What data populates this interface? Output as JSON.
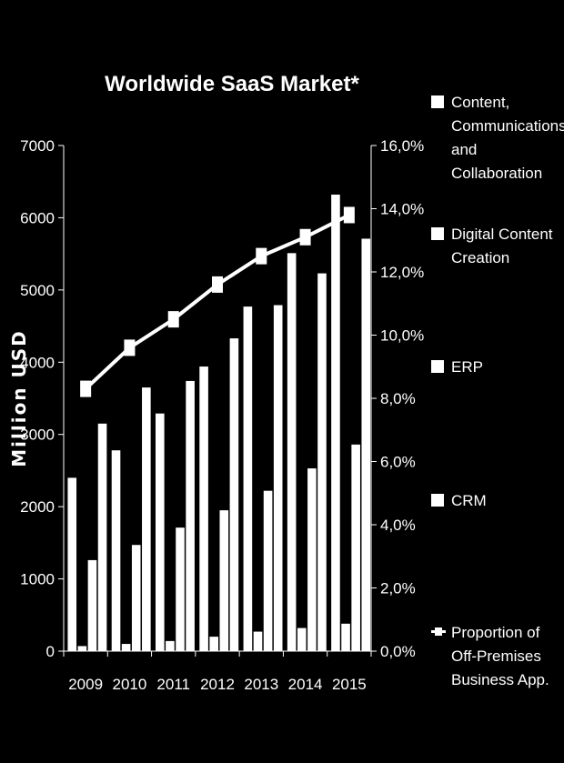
{
  "chart_data": {
    "type": "bar",
    "title": "Worldwide SaaS Market*",
    "ylabel": "Million USD",
    "ylim": [
      0,
      7000
    ],
    "y2lim": [
      0,
      16
    ],
    "y_ticks": [
      "0",
      "1000",
      "2000",
      "3000",
      "4000",
      "5000",
      "6000",
      "7000"
    ],
    "y2_ticks": [
      "0,0%",
      "2,0%",
      "4,0%",
      "6,0%",
      "8,0%",
      "10,0%",
      "12,0%",
      "14,0%",
      "16,0%"
    ],
    "categories": [
      "2009",
      "2010",
      "2011",
      "2012",
      "2013",
      "2014",
      "2015"
    ],
    "series": [
      {
        "name": "Content, Communications and Collaboration",
        "type": "bar",
        "values": [
          2400,
          2780,
          3290,
          3940,
          4770,
          5510,
          6320
        ]
      },
      {
        "name": "Digital Content Creation",
        "type": "bar",
        "values": [
          70,
          100,
          140,
          200,
          270,
          320,
          380
        ]
      },
      {
        "name": "ERP",
        "type": "bar",
        "values": [
          1260,
          1470,
          1710,
          1950,
          2220,
          2530,
          2860
        ]
      },
      {
        "name": "CRM",
        "type": "bar",
        "values": [
          3150,
          3650,
          3740,
          4330,
          4790,
          5230,
          5710
        ]
      },
      {
        "name": "Proportion of Off-Premises Business App.",
        "type": "line",
        "axis": "secondary",
        "unit": "%",
        "values": [
          8.3,
          9.6,
          10.5,
          11.6,
          12.5,
          13.1,
          13.8
        ]
      }
    ],
    "legend_position": "right",
    "grid": false
  },
  "legend": [
    {
      "label": "Content, Communications and Collaboration",
      "marker": "square"
    },
    {
      "label": "Digital Content Creation",
      "marker": "square"
    },
    {
      "label": "ERP",
      "marker": "square"
    },
    {
      "label": "CRM",
      "marker": "square"
    },
    {
      "label": "Proportion of Off-Premises Business App.",
      "marker": "line-square"
    }
  ],
  "colors": {
    "background": "#000000",
    "foreground": "#ffffff"
  }
}
